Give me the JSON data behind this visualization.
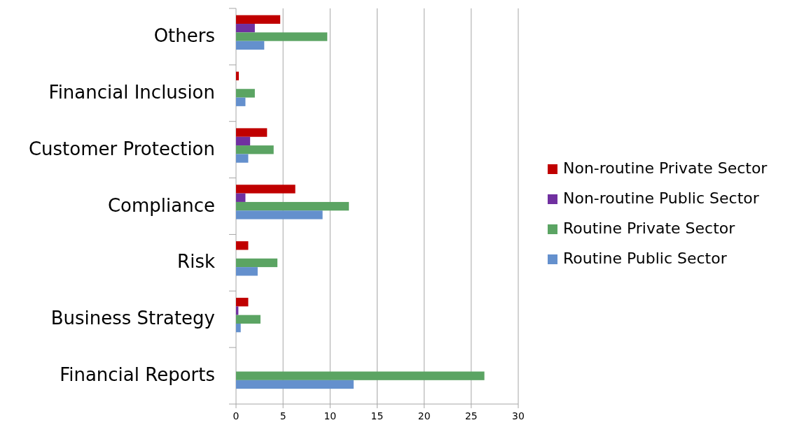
{
  "chart_data": {
    "type": "bar",
    "orientation": "horizontal",
    "categories": [
      "Others",
      "Financial Inclusion",
      "Customer Protection",
      "Compliance",
      "Risk",
      "Business Strategy",
      "Financial Reports"
    ],
    "series": [
      {
        "name": "Non-routine Private Sector",
        "color": "#c00000",
        "values": [
          4.7,
          0.3,
          3.3,
          6.3,
          1.3,
          1.3,
          0
        ]
      },
      {
        "name": "Non-routine Public Sector",
        "color": "#7030a0",
        "values": [
          2.0,
          0,
          1.5,
          1.0,
          0,
          0.25,
          0
        ]
      },
      {
        "name": "Routine Private Sector",
        "color": "#5ba463",
        "values": [
          9.7,
          2.0,
          4.0,
          12.0,
          4.4,
          2.6,
          26.4
        ]
      },
      {
        "name": "Routine Public Sector",
        "color": "#6490cd",
        "values": [
          3.0,
          1.0,
          1.3,
          9.2,
          2.3,
          0.5,
          12.5
        ]
      }
    ],
    "xlim": [
      0,
      30
    ],
    "xticks": [
      0,
      5,
      10,
      15,
      20,
      25,
      30
    ],
    "grid": "x",
    "legend": "right"
  }
}
